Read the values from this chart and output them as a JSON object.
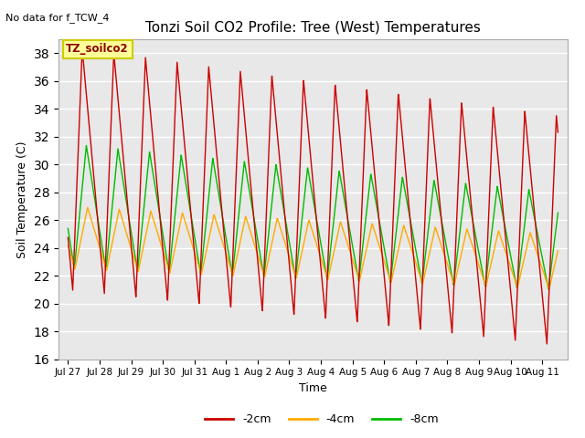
{
  "title": "Tonzi Soil CO2 Profile: Tree (West) Temperatures",
  "no_data_text": "No data for f_TCW_4",
  "legend_label": "TZ_soilco2",
  "xlabel": "Time",
  "ylabel": "Soil Temperature (C)",
  "ylim": [
    16,
    39
  ],
  "yticks": [
    16,
    18,
    20,
    22,
    24,
    26,
    28,
    30,
    32,
    34,
    36,
    38
  ],
  "line_colors": [
    "#cc0000",
    "#ffaa00",
    "#00bb00"
  ],
  "line_labels": [
    "-2cm",
    "-4cm",
    "-8cm"
  ],
  "plot_bg_color": "#e8e8e8",
  "grid_color": "#ffffff",
  "xtick_labels": [
    "Jul 27",
    "Jul 28",
    "Jul 29",
    "Jul 30",
    "Jul 31",
    "Aug 1",
    "Aug 2",
    "Aug 3",
    "Aug 4",
    "Aug 5",
    "Aug 6",
    "Aug 7",
    "Aug 8",
    "Aug 9",
    "Aug 10",
    "Aug 11"
  ],
  "num_days": 15.5
}
